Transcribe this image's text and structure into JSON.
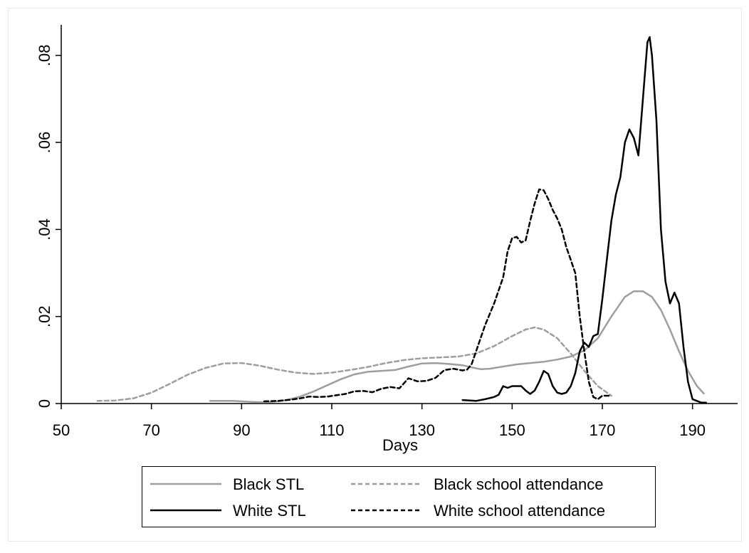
{
  "chart_data": {
    "type": "line",
    "title": "",
    "xlabel": "Days",
    "ylabel": "",
    "xlim": [
      50,
      200
    ],
    "ylim": [
      0,
      0.087
    ],
    "x_ticks": [
      "50",
      "70",
      "90",
      "110",
      "130",
      "150",
      "170",
      "190"
    ],
    "y_ticks": [
      "0",
      ".02",
      ".04",
      ".06",
      ".08"
    ],
    "grid": false,
    "legend_position": "bottom",
    "colors": {
      "gray": "#9e9e9e",
      "black": "#000000"
    },
    "series": [
      {
        "name": "Black STL",
        "color": "#9e9e9e",
        "dash": "solid",
        "points": [
          [
            83,
            0.0006
          ],
          [
            88,
            0.0006
          ],
          [
            92,
            0.0004
          ],
          [
            95,
            0.0003
          ],
          [
            98,
            0.0005
          ],
          [
            100,
            0.0008
          ],
          [
            103,
            0.0016
          ],
          [
            106,
            0.0028
          ],
          [
            109,
            0.0042
          ],
          [
            112,
            0.0056
          ],
          [
            115,
            0.0067
          ],
          [
            118,
            0.0073
          ],
          [
            121,
            0.0075
          ],
          [
            124,
            0.0077
          ],
          [
            127,
            0.0085
          ],
          [
            130,
            0.0092
          ],
          [
            133,
            0.0093
          ],
          [
            136,
            0.0091
          ],
          [
            139,
            0.0088
          ],
          [
            141,
            0.0083
          ],
          [
            143,
            0.0079
          ],
          [
            145,
            0.008
          ],
          [
            148,
            0.0085
          ],
          [
            151,
            0.009
          ],
          [
            154,
            0.0093
          ],
          [
            157,
            0.0096
          ],
          [
            160,
            0.0101
          ],
          [
            163,
            0.0108
          ],
          [
            166,
            0.0122
          ],
          [
            169,
            0.015
          ],
          [
            172,
            0.02
          ],
          [
            175,
            0.0245
          ],
          [
            177,
            0.0258
          ],
          [
            179,
            0.0258
          ],
          [
            181,
            0.0245
          ],
          [
            183,
            0.0215
          ],
          [
            185,
            0.017
          ],
          [
            187,
            0.012
          ],
          [
            189,
            0.0075
          ],
          [
            191,
            0.004
          ],
          [
            192.5,
            0.0023
          ]
        ]
      },
      {
        "name": "Black school attendance",
        "color": "#9e9e9e",
        "dash": "dashed",
        "points": [
          [
            58,
            0.0006
          ],
          [
            62,
            0.0007
          ],
          [
            66,
            0.0012
          ],
          [
            70,
            0.0025
          ],
          [
            74,
            0.0045
          ],
          [
            78,
            0.0066
          ],
          [
            82,
            0.0082
          ],
          [
            86,
            0.0092
          ],
          [
            90,
            0.0093
          ],
          [
            94,
            0.0087
          ],
          [
            98,
            0.0078
          ],
          [
            102,
            0.0071
          ],
          [
            106,
            0.0068
          ],
          [
            110,
            0.0071
          ],
          [
            114,
            0.0077
          ],
          [
            118,
            0.0084
          ],
          [
            122,
            0.0093
          ],
          [
            126,
            0.01
          ],
          [
            130,
            0.0104
          ],
          [
            134,
            0.0106
          ],
          [
            138,
            0.0108
          ],
          [
            142,
            0.0115
          ],
          [
            146,
            0.0132
          ],
          [
            150,
            0.0155
          ],
          [
            153,
            0.017
          ],
          [
            155,
            0.0175
          ],
          [
            157,
            0.017
          ],
          [
            160,
            0.015
          ],
          [
            163,
            0.0115
          ],
          [
            166,
            0.0075
          ],
          [
            169,
            0.004
          ],
          [
            172,
            0.0018
          ]
        ]
      },
      {
        "name": "White STL",
        "color": "#000000",
        "dash": "solid",
        "points": [
          [
            139,
            0.0008
          ],
          [
            142,
            0.0006
          ],
          [
            144,
            0.001
          ],
          [
            146,
            0.0015
          ],
          [
            147,
            0.002
          ],
          [
            148,
            0.004
          ],
          [
            149,
            0.0036
          ],
          [
            150,
            0.004
          ],
          [
            152,
            0.004
          ],
          [
            153,
            0.003
          ],
          [
            154,
            0.0022
          ],
          [
            155,
            0.003
          ],
          [
            156,
            0.005
          ],
          [
            157,
            0.0075
          ],
          [
            158,
            0.0068
          ],
          [
            159,
            0.004
          ],
          [
            160,
            0.0025
          ],
          [
            161,
            0.0022
          ],
          [
            162,
            0.0025
          ],
          [
            163,
            0.004
          ],
          [
            164,
            0.007
          ],
          [
            165,
            0.012
          ],
          [
            166,
            0.014
          ],
          [
            167,
            0.013
          ],
          [
            168,
            0.0155
          ],
          [
            169,
            0.016
          ],
          [
            170,
            0.024
          ],
          [
            171,
            0.033
          ],
          [
            172,
            0.042
          ],
          [
            173,
            0.048
          ],
          [
            174,
            0.052
          ],
          [
            175,
            0.06
          ],
          [
            176,
            0.063
          ],
          [
            177,
            0.061
          ],
          [
            178,
            0.057
          ],
          [
            179,
            0.07
          ],
          [
            180,
            0.083
          ],
          [
            180.5,
            0.0842
          ],
          [
            181,
            0.08
          ],
          [
            182,
            0.065
          ],
          [
            183,
            0.04
          ],
          [
            184,
            0.028
          ],
          [
            185,
            0.023
          ],
          [
            186,
            0.0255
          ],
          [
            187,
            0.023
          ],
          [
            188,
            0.013
          ],
          [
            189,
            0.005
          ],
          [
            190,
            0.001
          ],
          [
            192,
            0.0002
          ],
          [
            193,
            0.0002
          ]
        ]
      },
      {
        "name": "White school attendance",
        "color": "#000000",
        "dash": "dashed",
        "points": [
          [
            95,
            0.0005
          ],
          [
            98,
            0.0006
          ],
          [
            101,
            0.0009
          ],
          [
            103,
            0.0012
          ],
          [
            105,
            0.0016
          ],
          [
            107,
            0.0015
          ],
          [
            109,
            0.0016
          ],
          [
            111,
            0.0019
          ],
          [
            113,
            0.0022
          ],
          [
            115,
            0.0028
          ],
          [
            117,
            0.0029
          ],
          [
            119,
            0.0026
          ],
          [
            121,
            0.0034
          ],
          [
            123,
            0.0038
          ],
          [
            125,
            0.0035
          ],
          [
            127,
            0.0058
          ],
          [
            129,
            0.0051
          ],
          [
            131,
            0.0052
          ],
          [
            133,
            0.0059
          ],
          [
            135,
            0.0077
          ],
          [
            137,
            0.008
          ],
          [
            139,
            0.0076
          ],
          [
            140,
            0.0078
          ],
          [
            141,
            0.009
          ],
          [
            142,
            0.012
          ],
          [
            144,
            0.018
          ],
          [
            146,
            0.023
          ],
          [
            148,
            0.029
          ],
          [
            149,
            0.035
          ],
          [
            150,
            0.038
          ],
          [
            151,
            0.0383
          ],
          [
            152,
            0.037
          ],
          [
            153,
            0.0375
          ],
          [
            154,
            0.042
          ],
          [
            155,
            0.046
          ],
          [
            156,
            0.0492
          ],
          [
            157,
            0.049
          ],
          [
            158,
            0.047
          ],
          [
            159,
            0.0445
          ],
          [
            160,
            0.0425
          ],
          [
            161,
            0.04
          ],
          [
            162,
            0.036
          ],
          [
            163,
            0.033
          ],
          [
            164,
            0.03
          ],
          [
            165,
            0.02
          ],
          [
            166,
            0.012
          ],
          [
            167,
            0.005
          ],
          [
            168,
            0.0015
          ],
          [
            169,
            0.001
          ],
          [
            170,
            0.0018
          ],
          [
            172,
            0.0018
          ]
        ]
      }
    ]
  }
}
